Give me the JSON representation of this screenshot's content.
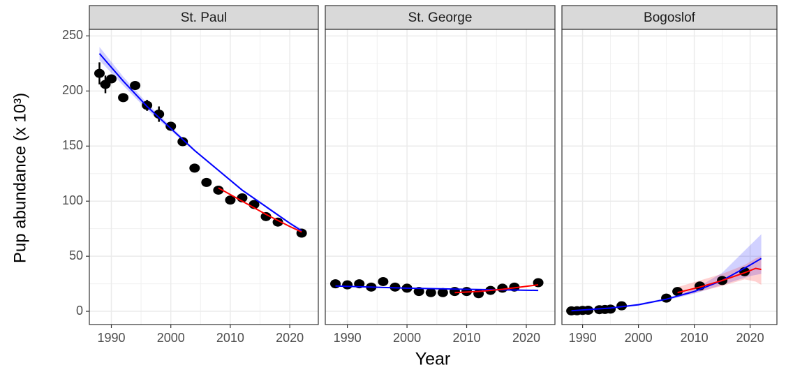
{
  "y_label": "Pup abundance (x 10³)",
  "x_label": "Year",
  "chart_data": [
    {
      "type": "scatter",
      "title": "St. Paul",
      "xlim": [
        1986.3,
        2024.8
      ],
      "ylim": [
        -12,
        256
      ],
      "xticks": [
        1990,
        2000,
        2010,
        2020
      ],
      "xminor": [
        1995,
        2005,
        2015
      ],
      "yticks": [
        0,
        50,
        100,
        150,
        200,
        250
      ],
      "yminor": [
        25,
        75,
        125,
        175,
        225
      ],
      "grid": true,
      "points": {
        "color": "#000000",
        "x": [
          1988,
          1989,
          1990,
          1992,
          1994,
          1996,
          1998,
          2000,
          2002,
          2004,
          2006,
          2008,
          2010,
          2012,
          2014,
          2016,
          2018,
          2022
        ],
        "values": [
          216,
          206,
          211,
          194,
          205,
          187,
          179,
          168,
          154,
          130,
          117,
          110,
          101,
          103,
          97,
          86,
          81,
          71
        ],
        "errors": [
          10,
          8,
          null,
          null,
          null,
          5,
          7,
          4,
          null,
          null,
          null,
          null,
          null,
          null,
          null,
          null,
          null,
          null
        ]
      },
      "lines": [
        {
          "color": "#0000ff",
          "x": [
            1988,
            1992,
            1996,
            2000,
            2004,
            2008,
            2012,
            2016,
            2020,
            2022
          ],
          "values": [
            234,
            209,
            186,
            166,
            146,
            128,
            110,
            95,
            80,
            73
          ],
          "lower": [
            228,
            205,
            183,
            164,
            145,
            127,
            109,
            94,
            79,
            71
          ],
          "upper": [
            240,
            213,
            189,
            168,
            147,
            129,
            111,
            96,
            81,
            75
          ]
        },
        {
          "color": "#ff0000",
          "x": [
            2008,
            2012,
            2016,
            2020,
            2022
          ],
          "values": [
            112,
            100,
            88,
            77,
            72
          ]
        }
      ]
    },
    {
      "type": "scatter",
      "title": "St. George",
      "xlim": [
        1986.3,
        2024.8
      ],
      "ylim": [
        -12,
        256
      ],
      "xticks": [
        1990,
        2000,
        2010,
        2020
      ],
      "xminor": [
        1995,
        2005,
        2015
      ],
      "yticks": [
        0,
        50,
        100,
        150,
        200,
        250
      ],
      "yminor": [
        25,
        75,
        125,
        175,
        225
      ],
      "grid": true,
      "points": {
        "color": "#000000",
        "x": [
          1988,
          1990,
          1992,
          1994,
          1996,
          1998,
          2000,
          2002,
          2004,
          2006,
          2008,
          2010,
          2012,
          2014,
          2016,
          2018,
          2022
        ],
        "values": [
          25,
          24,
          25,
          22,
          27,
          22,
          21,
          18,
          17,
          17,
          18,
          18,
          16,
          19,
          21,
          22,
          26
        ]
      },
      "lines": [
        {
          "color": "#0000ff",
          "x": [
            1988,
            2000,
            2010,
            2022
          ],
          "values": [
            23,
            21,
            20,
            19
          ]
        },
        {
          "color": "#ff0000",
          "x": [
            2008,
            2012,
            2016,
            2022
          ],
          "values": [
            17,
            18,
            20,
            24
          ]
        }
      ]
    },
    {
      "type": "scatter",
      "title": "Bogoslof",
      "xlim": [
        1986.3,
        2024.8
      ],
      "ylim": [
        -12,
        256
      ],
      "xticks": [
        1990,
        2000,
        2010,
        2020
      ],
      "xminor": [
        1995,
        2005,
        2015
      ],
      "yticks": [
        0,
        50,
        100,
        150,
        200,
        250
      ],
      "yminor": [
        25,
        75,
        125,
        175,
        225
      ],
      "grid": true,
      "points": {
        "color": "#000000",
        "x": [
          1988,
          1989,
          1990,
          1991,
          1993,
          1994,
          1995,
          1997,
          2005,
          2007,
          2011,
          2015,
          2019
        ],
        "values": [
          0.4,
          0.5,
          0.8,
          1,
          1.5,
          1.7,
          2,
          5,
          12,
          18,
          23,
          28,
          36
        ]
      },
      "lines": [
        {
          "color": "#0000ff",
          "x": [
            1988,
            1995,
            2000,
            2005,
            2010,
            2015,
            2020,
            2022
          ],
          "values": [
            0.5,
            3,
            6,
            11,
            18,
            28,
            42,
            48
          ],
          "lower": [
            0.3,
            2.5,
            5,
            10,
            16,
            24,
            32,
            34
          ],
          "upper": [
            0.7,
            3.5,
            7,
            12,
            20,
            35,
            60,
            70
          ]
        },
        {
          "color": "#ff0000",
          "x": [
            2007,
            2011,
            2015,
            2019,
            2021,
            2022
          ],
          "values": [
            17,
            22,
            28,
            35,
            39,
            38
          ],
          "lower": [
            13,
            18,
            23,
            29,
            27,
            24
          ],
          "upper": [
            22,
            28,
            34,
            42,
            48,
            50
          ]
        }
      ]
    }
  ]
}
